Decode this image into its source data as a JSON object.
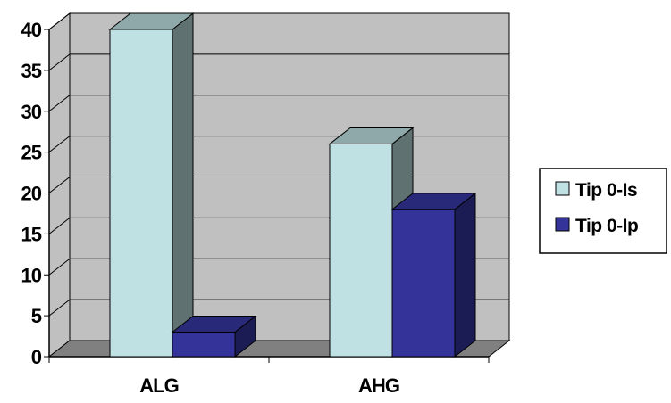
{
  "chart_data": {
    "type": "bar",
    "style": "3d-clustered-column",
    "title": "",
    "xlabel": "",
    "ylabel": "",
    "categories": [
      "ALG",
      "AHG"
    ],
    "series": [
      {
        "name": "Tip 0-Is",
        "values": [
          40,
          26
        ],
        "color": "#bfe1e3"
      },
      {
        "name": "Tip 0-Ip",
        "values": [
          3,
          18
        ],
        "color": "#333399"
      }
    ],
    "ylim": [
      0,
      40
    ],
    "yticks": [
      "0",
      "5",
      "10",
      "15",
      "20",
      "25",
      "30",
      "35",
      "40"
    ],
    "grid": true,
    "legend_position": "right",
    "wall_color": "#c0c0c0",
    "floor_color": "#808080"
  }
}
